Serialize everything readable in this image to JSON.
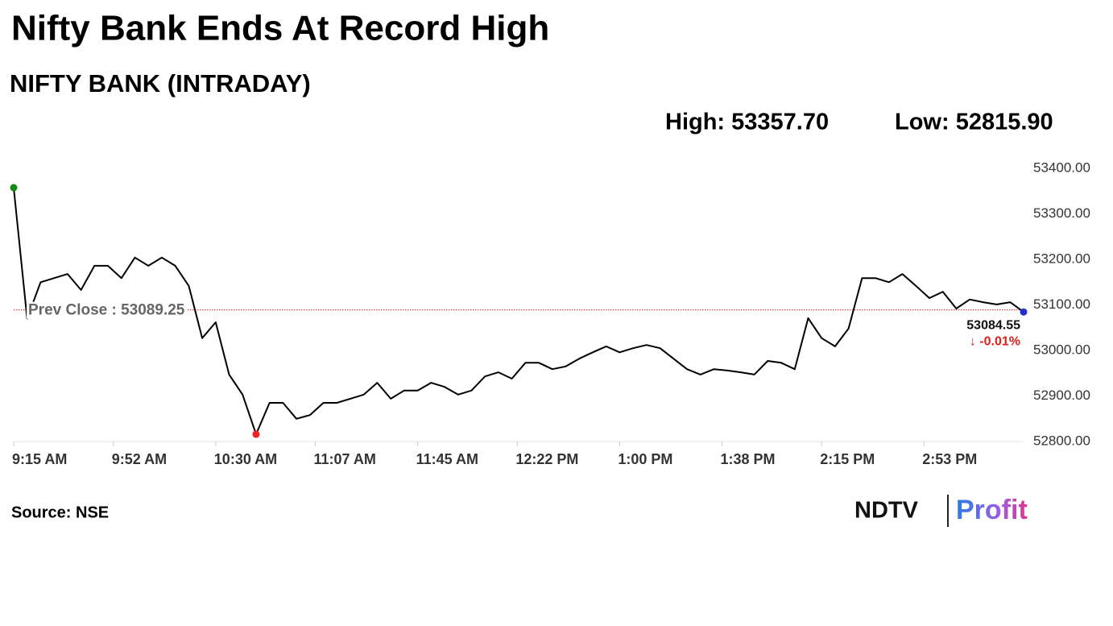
{
  "chart_data": {
    "type": "line",
    "title": "Nifty Bank Ends At Record High",
    "subtitle": "NIFTY BANK (INTRADAY)",
    "high_label": "High: 53357.70",
    "low_label": "Low: 52815.90",
    "prev_close": {
      "value": 53089.25,
      "label": "Prev Close : 53089.25"
    },
    "last_label": "53084.55",
    "change_label": "↓ -0.01%",
    "source": "Source: NSE",
    "logo": {
      "left": "NDTV",
      "right": "Profit"
    },
    "x": [
      "9:15 AM",
      "9:20 AM",
      "9:25 AM",
      "9:30 AM",
      "9:35 AM",
      "9:40 AM",
      "9:45 AM",
      "9:50 AM",
      "9:55 AM",
      "10:00 AM",
      "10:05 AM",
      "10:10 AM",
      "10:15 AM",
      "10:20 AM",
      "10:25 AM",
      "10:30 AM",
      "10:35 AM",
      "10:40 AM",
      "10:45 AM",
      "10:50 AM",
      "10:55 AM",
      "11:00 AM",
      "11:05 AM",
      "11:10 AM",
      "11:15 AM",
      "11:20 AM",
      "11:25 AM",
      "11:30 AM",
      "11:35 AM",
      "11:40 AM",
      "11:45 AM",
      "11:50 AM",
      "11:55 AM",
      "12:00 PM",
      "12:05 PM",
      "12:10 PM",
      "12:15 PM",
      "12:20 PM",
      "12:25 PM",
      "12:30 PM",
      "12:35 PM",
      "12:40 PM",
      "12:45 PM",
      "12:50 PM",
      "12:55 PM",
      "1:00 PM",
      "1:05 PM",
      "1:10 PM",
      "1:15 PM",
      "1:20 PM",
      "1:25 PM",
      "1:30 PM",
      "1:35 PM",
      "1:40 PM",
      "1:45 PM",
      "1:50 PM",
      "1:55 PM",
      "2:00 PM",
      "2:05 PM",
      "2:10 PM",
      "2:15 PM",
      "2:20 PM",
      "2:25 PM",
      "2:30 PM",
      "2:35 PM",
      "2:40 PM",
      "2:45 PM",
      "2:50 PM",
      "2:55 PM",
      "3:00 PM",
      "3:05 PM",
      "3:10 PM",
      "3:15 PM",
      "3:20 PM",
      "3:25 PM",
      "3:30 PM"
    ],
    "series": [
      {
        "name": "NIFTY BANK",
        "color": "#000000",
        "values": [
          53357.7,
          53070,
          53150,
          53159,
          53168,
          53133,
          53186,
          53186,
          53159,
          53204,
          53186,
          53204,
          53186,
          53142,
          53027,
          53062,
          52947,
          52903,
          52815.9,
          52885,
          52885,
          52850,
          52858,
          52885,
          52885,
          52894,
          52903,
          52929,
          52894,
          52912,
          52912,
          52929,
          52920,
          52903,
          52912,
          52943,
          52952,
          52938,
          52973,
          52973,
          52959,
          52965,
          52982,
          52996,
          53009,
          52996,
          53005,
          53012,
          53005,
          52982,
          52959,
          52947,
          52959,
          52956,
          52952,
          52947,
          52977,
          52973,
          52959,
          53071,
          53027,
          53009,
          53048,
          53159,
          53159,
          53150,
          53168,
          53142,
          53115,
          53129,
          53092,
          53112,
          53106,
          53101,
          53106,
          53084.55
        ]
      }
    ],
    "high_color": "#118811",
    "low_color": "#ee2222",
    "last_color": "#2233cc",
    "prev_close_color": "#cc2222",
    "xlim": [
      "9:15 AM",
      "3:30 PM"
    ],
    "xticks": [
      "9:15 AM",
      "9:52 AM",
      "10:30 AM",
      "11:07 AM",
      "11:45 AM",
      "12:22 PM",
      "1:00 PM",
      "1:38 PM",
      "2:15 PM",
      "2:53 PM"
    ],
    "ylim": [
      52800,
      53400
    ],
    "yticks": [
      {
        "value": 52800,
        "label": "52800.00"
      },
      {
        "value": 52900,
        "label": "52900.00"
      },
      {
        "value": 53000,
        "label": "53000.00"
      },
      {
        "value": 53100,
        "label": "53100.00"
      },
      {
        "value": 53200,
        "label": "53200.00"
      },
      {
        "value": 53300,
        "label": "53300.00"
      },
      {
        "value": 53400,
        "label": "53400.00"
      }
    ]
  }
}
